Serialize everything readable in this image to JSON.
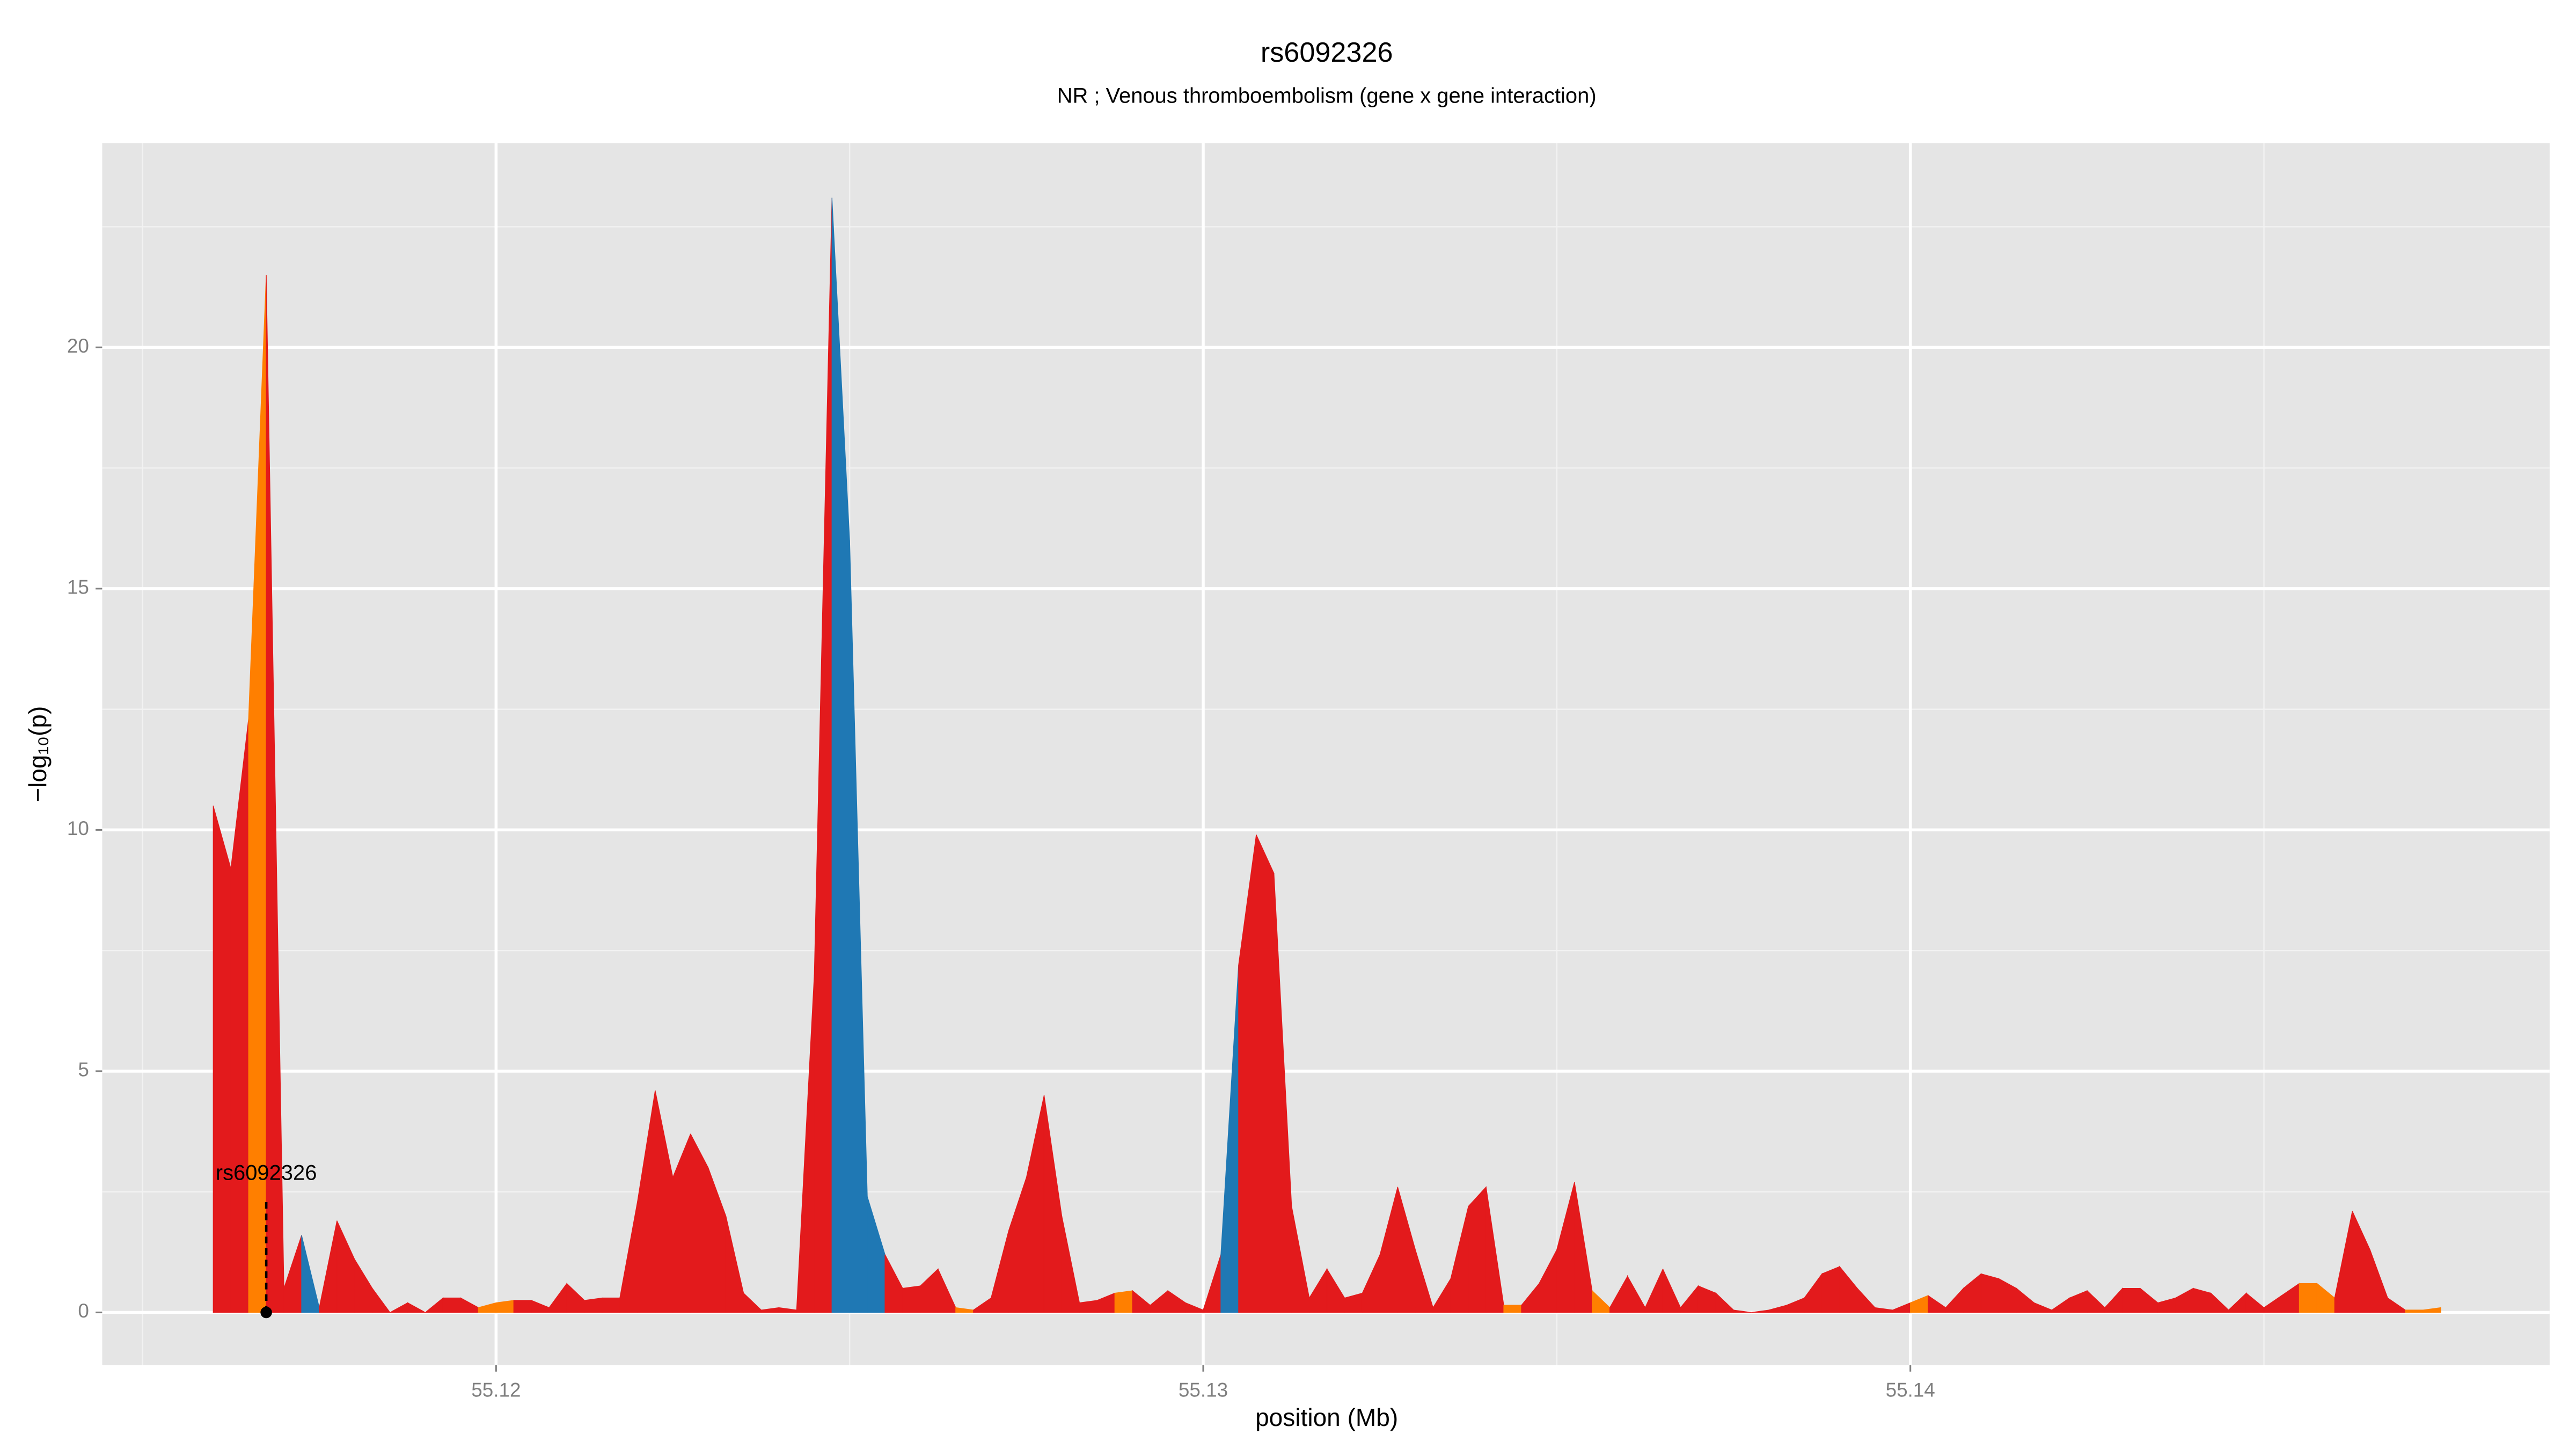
{
  "chart_data": {
    "type": "area",
    "title": "rs6092326",
    "subtitle": "NR ; Venous thromboembolism (gene x gene interaction)",
    "x_label": "position (Mb)",
    "y_label": "−log₁₀(p)",
    "xlim": [
      55.11443,
      55.14904
    ],
    "ylim": [
      -1.09,
      24.23
    ],
    "xticks": [
      55.12,
      55.13,
      55.14
    ],
    "yticks": [
      0,
      5,
      10,
      15,
      20
    ],
    "x_minor_ticks": [
      55.115,
      55.125,
      55.135,
      55.145
    ],
    "y_minor_ticks": [
      2.5,
      7.5,
      12.5,
      17.5,
      22.5
    ],
    "grid": true,
    "annotation": {
      "label": "rs6092326",
      "x": 55.11675
    },
    "x": [
      55.116,
      55.11625,
      55.1165,
      55.11675,
      55.117,
      55.11725,
      55.1175,
      55.11775,
      55.118,
      55.11825,
      55.1185,
      55.11875,
      55.119,
      55.11925,
      55.1195,
      55.11975,
      55.12,
      55.12025,
      55.1205,
      55.12075,
      55.121,
      55.12125,
      55.1215,
      55.12175,
      55.122,
      55.12225,
      55.1225,
      55.12275,
      55.123,
      55.12325,
      55.1235,
      55.12375,
      55.124,
      55.12425,
      55.1245,
      55.12475,
      55.125,
      55.12525,
      55.1255,
      55.12575,
      55.126,
      55.12625,
      55.1265,
      55.12675,
      55.127,
      55.12725,
      55.1275,
      55.12775,
      55.128,
      55.12825,
      55.1285,
      55.12875,
      55.129,
      55.12925,
      55.1295,
      55.12975,
      55.13,
      55.13025,
      55.1305,
      55.13075,
      55.131,
      55.13125,
      55.1315,
      55.13175,
      55.132,
      55.13225,
      55.1325,
      55.13275,
      55.133,
      55.13325,
      55.1335,
      55.13375,
      55.134,
      55.13425,
      55.1345,
      55.13475,
      55.135,
      55.13525,
      55.1355,
      55.13575,
      55.136,
      55.13625,
      55.1365,
      55.13675,
      55.137,
      55.13725,
      55.1375,
      55.13775,
      55.138,
      55.13825,
      55.1385,
      55.13875,
      55.139,
      55.13925,
      55.1395,
      55.13975,
      55.14,
      55.14025,
      55.1405,
      55.14075,
      55.141,
      55.14125,
      55.1415,
      55.14175,
      55.142,
      55.14225,
      55.1425,
      55.14275,
      55.143,
      55.14325,
      55.1435,
      55.14375,
      55.144,
      55.14425,
      55.1445,
      55.14475,
      55.145,
      55.14525,
      55.1455,
      55.14575,
      55.146,
      55.14625,
      55.1465,
      55.14675,
      55.147,
      55.14725,
      55.1475
    ],
    "values": [
      10.5,
      9.2,
      12.3,
      21.5,
      0.5,
      1.6,
      0.1,
      1.9,
      1.1,
      0.5,
      0.0,
      0.2,
      0.0,
      0.3,
      0.3,
      0.1,
      0.2,
      0.25,
      0.25,
      0.1,
      0.6,
      0.25,
      0.3,
      0.3,
      2.3,
      4.6,
      2.8,
      3.7,
      3.0,
      2.0,
      0.4,
      0.05,
      0.1,
      0.05,
      7.0,
      23.1,
      16.0,
      2.4,
      1.2,
      0.5,
      0.55,
      0.9,
      0.1,
      0.05,
      0.3,
      1.7,
      2.8,
      4.5,
      2.0,
      0.2,
      0.25,
      0.4,
      0.45,
      0.15,
      0.45,
      0.2,
      0.05,
      1.2,
      7.2,
      9.9,
      9.1,
      2.2,
      0.3,
      0.9,
      0.3,
      0.4,
      1.2,
      2.6,
      1.3,
      0.1,
      0.7,
      2.2,
      2.6,
      0.15,
      0.15,
      0.6,
      1.3,
      2.7,
      0.45,
      0.1,
      0.75,
      0.1,
      0.9,
      0.1,
      0.55,
      0.4,
      0.05,
      0.0,
      0.05,
      0.15,
      0.3,
      0.8,
      0.95,
      0.5,
      0.1,
      0.05,
      0.2,
      0.35,
      0.1,
      0.5,
      0.8,
      0.7,
      0.5,
      0.2,
      0.05,
      0.3,
      0.45,
      0.1,
      0.5,
      0.5,
      0.2,
      0.3,
      0.5,
      0.4,
      0.05,
      0.4,
      0.1,
      0.35,
      0.6,
      0.6,
      0.3,
      2.1,
      1.3,
      0.3,
      0.05,
      0.05,
      0.1
    ],
    "colors": [
      "#e31a1c",
      "#e31a1c",
      "#ff7f00",
      "#e31a1c",
      "#e31a1c",
      "#1f78b4",
      "#e31a1c",
      "#e31a1c",
      "#e31a1c",
      "#e31a1c",
      "#e31a1c",
      "#e31a1c",
      "#e31a1c",
      "#e31a1c",
      "#e31a1c",
      "#ff7f00",
      "#ff7f00",
      "#e31a1c",
      "#e31a1c",
      "#e31a1c",
      "#e31a1c",
      "#e31a1c",
      "#e31a1c",
      "#e31a1c",
      "#e31a1c",
      "#e31a1c",
      "#e31a1c",
      "#e31a1c",
      "#e31a1c",
      "#e31a1c",
      "#e31a1c",
      "#e31a1c",
      "#e31a1c",
      "#e31a1c",
      "#e31a1c",
      "#1f78b4",
      "#1f78b4",
      "#1f78b4",
      "#e31a1c",
      "#e31a1c",
      "#e31a1c",
      "#e31a1c",
      "#ff7f00",
      "#e31a1c",
      "#e31a1c",
      "#e31a1c",
      "#e31a1c",
      "#e31a1c",
      "#e31a1c",
      "#e31a1c",
      "#e31a1c",
      "#ff7f00",
      "#e31a1c",
      "#e31a1c",
      "#e31a1c",
      "#e31a1c",
      "#e31a1c",
      "#1f78b4",
      "#e31a1c",
      "#e31a1c",
      "#e31a1c",
      "#e31a1c",
      "#e31a1c",
      "#e31a1c",
      "#e31a1c",
      "#e31a1c",
      "#e31a1c",
      "#e31a1c",
      "#e31a1c",
      "#e31a1c",
      "#e31a1c",
      "#e31a1c",
      "#e31a1c",
      "#ff7f00",
      "#e31a1c",
      "#e31a1c",
      "#e31a1c",
      "#e31a1c",
      "#ff7f00",
      "#e31a1c",
      "#e31a1c",
      "#e31a1c",
      "#e31a1c",
      "#e31a1c",
      "#e31a1c",
      "#e31a1c",
      "#e31a1c",
      "#e31a1c",
      "#e31a1c",
      "#e31a1c",
      "#e31a1c",
      "#e31a1c",
      "#e31a1c",
      "#e31a1c",
      "#e31a1c",
      "#e31a1c",
      "#ff7f00",
      "#e31a1c",
      "#e31a1c",
      "#e31a1c",
      "#e31a1c",
      "#e31a1c",
      "#e31a1c",
      "#e31a1c",
      "#e31a1c",
      "#e31a1c",
      "#e31a1c",
      "#e31a1c",
      "#e31a1c",
      "#e31a1c",
      "#e31a1c",
      "#e31a1c",
      "#e31a1c",
      "#e31a1c",
      "#e31a1c",
      "#e31a1c",
      "#e31a1c",
      "#e31a1c",
      "#ff7f00",
      "#ff7f00",
      "#e31a1c",
      "#e31a1c",
      "#e31a1c",
      "#e31a1c",
      "#ff7f00",
      "#ff7f00",
      "#ff7f00"
    ]
  }
}
